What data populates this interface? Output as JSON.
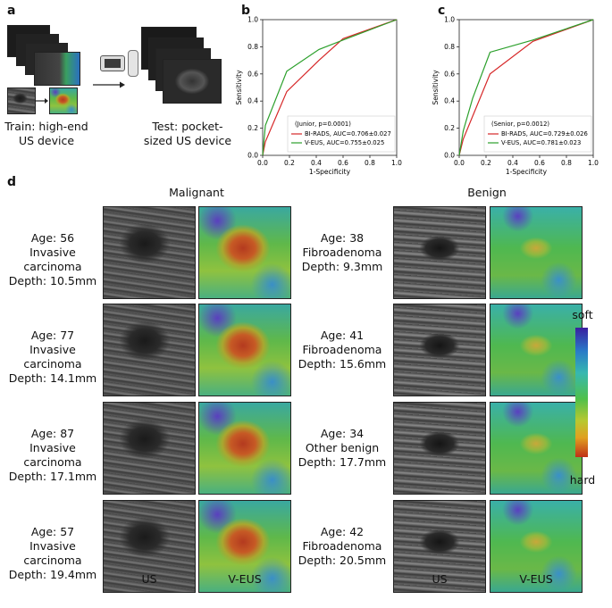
{
  "panels": {
    "a": {
      "letter": "a",
      "train_caption_line1": "Train: high-end",
      "train_caption_line2": "US device",
      "test_caption_line1": "Test: pocket-",
      "test_caption_line2": "sized US device"
    },
    "b": {
      "letter": "b"
    },
    "c": {
      "letter": "c"
    },
    "d": {
      "letter": "d",
      "malignant_title": "Malignant",
      "benign_title": "Benign",
      "col_us": "US",
      "col_veus": "V-EUS",
      "colorbar_top": "soft",
      "colorbar_bottom": "hard",
      "malignant": [
        {
          "age": "Age: 56",
          "type": "Invasive carcinoma",
          "depth": "Depth: 10.5mm"
        },
        {
          "age": "Age: 77",
          "type": "Invasive carcinoma",
          "depth": "Depth: 14.1mm"
        },
        {
          "age": "Age: 87",
          "type": "Invasive carcinoma",
          "depth": "Depth: 17.1mm"
        },
        {
          "age": "Age: 57",
          "type": "Invasive carcinoma",
          "depth": "Depth: 19.4mm"
        }
      ],
      "benign": [
        {
          "age": "Age: 38",
          "type": "Fibroadenoma",
          "depth": "Depth: 9.3mm"
        },
        {
          "age": "Age: 41",
          "type": "Fibroadenoma",
          "depth": "Depth: 15.6mm"
        },
        {
          "age": "Age: 34",
          "type": "Other benign",
          "depth": "Depth: 17.7mm"
        },
        {
          "age": "Age: 42",
          "type": "Fibroadenoma",
          "depth": "Depth: 20.5mm"
        }
      ]
    }
  },
  "chart_data": [
    {
      "type": "line",
      "xlabel": "1-Specificity",
      "ylabel": "Sensitivity",
      "xlim": [
        0,
        1
      ],
      "ylim": [
        0,
        1
      ],
      "xticks": [
        "0.0",
        "0.2",
        "0.4",
        "0.6",
        "0.8",
        "1.0"
      ],
      "yticks": [
        "0.0",
        "0.2",
        "0.4",
        "0.6",
        "0.8",
        "1.0"
      ],
      "legend_title": "(Junior, p=0.0001)",
      "legend_position": "bottom-right",
      "series": [
        {
          "name": "BI-RADS, AUC=0.706±0.027",
          "color": "#d62728",
          "x": [
            0,
            0.02,
            0.18,
            0.42,
            0.6,
            1.0
          ],
          "y": [
            0,
            0.1,
            0.47,
            0.7,
            0.86,
            1.0
          ]
        },
        {
          "name": "V-EUS, AUC=0.755±0.025",
          "color": "#2ca02c",
          "x": [
            0,
            0.02,
            0.18,
            0.42,
            0.6,
            1.0
          ],
          "y": [
            0,
            0.22,
            0.62,
            0.78,
            0.85,
            1.0
          ]
        }
      ]
    },
    {
      "type": "line",
      "xlabel": "1-Specificity",
      "ylabel": "Sensitivity",
      "xlim": [
        0,
        1
      ],
      "ylim": [
        0,
        1
      ],
      "xticks": [
        "0.0",
        "0.2",
        "0.4",
        "0.6",
        "0.8",
        "1.0"
      ],
      "yticks": [
        "0.0",
        "0.2",
        "0.4",
        "0.6",
        "0.8",
        "1.0"
      ],
      "legend_title": "(Senior, p=0.0012)",
      "legend_position": "bottom-right",
      "series": [
        {
          "name": "BI-RADS, AUC=0.729±0.026",
          "color": "#d62728",
          "x": [
            0,
            0.03,
            0.23,
            0.55,
            1.0
          ],
          "y": [
            0,
            0.12,
            0.6,
            0.84,
            1.0
          ]
        },
        {
          "name": "V-EUS, AUC=0.781±0.023",
          "color": "#2ca02c",
          "x": [
            0,
            0.03,
            0.1,
            0.23,
            0.55,
            1.0
          ],
          "y": [
            0,
            0.18,
            0.42,
            0.76,
            0.85,
            1.0
          ]
        }
      ]
    }
  ]
}
